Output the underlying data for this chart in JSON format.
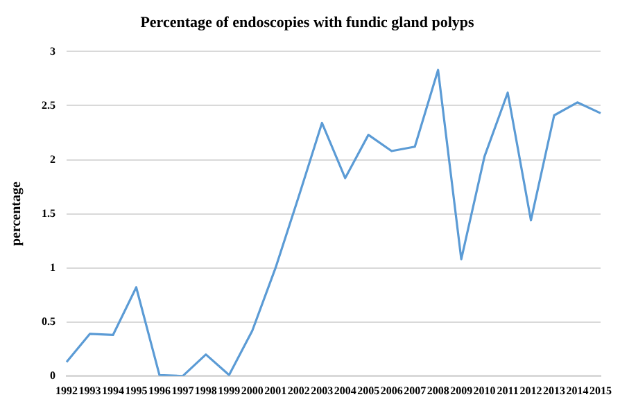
{
  "chart_data": {
    "type": "line",
    "title": "Percentage of endoscopies with fundic gland polyps",
    "ylabel": "percentage",
    "categories": [
      "1992",
      "1993",
      "1994",
      "1995",
      "1996",
      "1997",
      "1998",
      "1999",
      "2000",
      "2001",
      "2002",
      "2003",
      "2004",
      "2005",
      "2006",
      "2007",
      "2008",
      "2009",
      "2010",
      "2011",
      "2012",
      "2013",
      "2014",
      "2015"
    ],
    "series": [
      {
        "color": "#5b9bd5",
        "values": [
          0.13,
          0.39,
          0.38,
          0.82,
          0.01,
          0.0,
          0.2,
          0.01,
          0.42,
          1.0,
          1.66,
          2.34,
          1.83,
          2.23,
          2.08,
          2.12,
          2.83,
          1.08,
          2.03,
          2.62,
          1.44,
          2.41,
          2.53,
          2.43
        ]
      }
    ],
    "ylim": [
      0,
      3
    ],
    "yticks": [
      0,
      0.5,
      1,
      1.5,
      2,
      2.5,
      3
    ],
    "grid": "y",
    "legend": false,
    "marker": "none",
    "line_style": "solid"
  }
}
